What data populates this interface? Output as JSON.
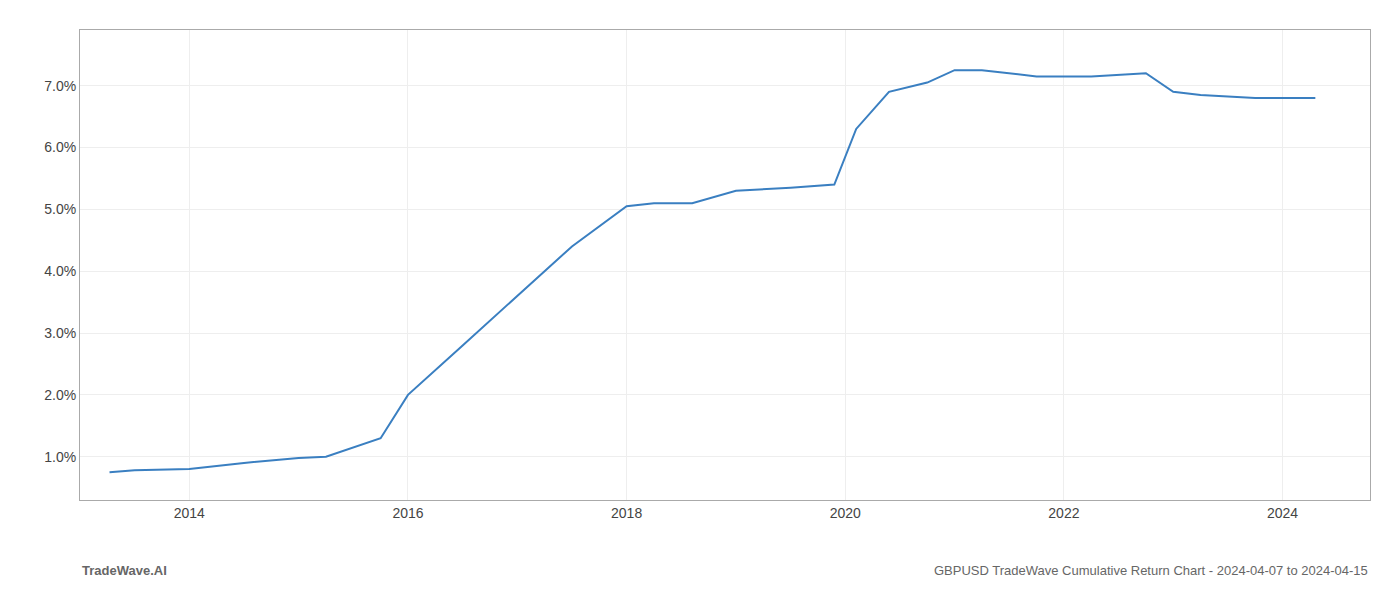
{
  "chart_data": {
    "type": "line",
    "x": [
      2013.27,
      2013.5,
      2014.0,
      2014.5,
      2015.0,
      2015.25,
      2015.75,
      2016.0,
      2016.5,
      2017.0,
      2017.5,
      2018.0,
      2018.25,
      2018.6,
      2019.0,
      2019.5,
      2019.9,
      2020.1,
      2020.4,
      2020.75,
      2021.0,
      2021.25,
      2021.75,
      2022.0,
      2022.25,
      2022.75,
      2023.0,
      2023.25,
      2023.75,
      2024.0,
      2024.3
    ],
    "values": [
      0.0075,
      0.0078,
      0.008,
      0.009,
      0.0098,
      0.01,
      0.013,
      0.02,
      0.028,
      0.036,
      0.044,
      0.0505,
      0.051,
      0.051,
      0.053,
      0.0535,
      0.054,
      0.063,
      0.069,
      0.0705,
      0.0725,
      0.0725,
      0.0715,
      0.0715,
      0.0715,
      0.072,
      0.069,
      0.0685,
      0.068,
      0.068,
      0.068
    ],
    "color": "#3a7fc1",
    "xlim": [
      2013.0,
      2024.8
    ],
    "ylim": [
      0.003,
      0.079
    ],
    "xticks": [
      2014,
      2016,
      2018,
      2020,
      2022,
      2024
    ],
    "yticks": [
      {
        "value": 0.01,
        "label": "1.0%"
      },
      {
        "value": 0.02,
        "label": "2.0%"
      },
      {
        "value": 0.03,
        "label": "3.0%"
      },
      {
        "value": 0.04,
        "label": "4.0%"
      },
      {
        "value": 0.05,
        "label": "5.0%"
      },
      {
        "value": 0.06,
        "label": "6.0%"
      },
      {
        "value": 0.07,
        "label": "7.0%"
      }
    ],
    "grid": true,
    "annotations": [
      "TradeWave.AI",
      "GBPUSD TradeWave Cumulative Return Chart - 2024-04-07 to 2024-04-15"
    ]
  }
}
